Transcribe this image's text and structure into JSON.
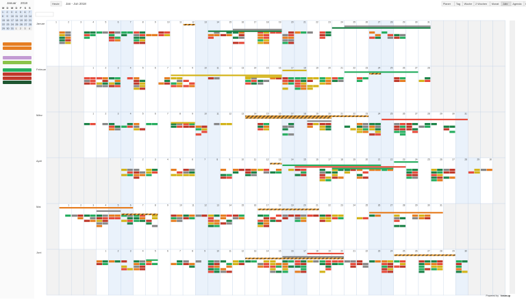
{
  "sidebar": {
    "month": "Januar",
    "year": "2018",
    "weekdays": [
      "M",
      "D",
      "M",
      "D",
      "F",
      "S",
      "S"
    ],
    "days": [
      1,
      2,
      3,
      4,
      5,
      6,
      7,
      8,
      9,
      10,
      11,
      12,
      13,
      14,
      15,
      16,
      17,
      18,
      19,
      20,
      21,
      22,
      23,
      24,
      25,
      26,
      27,
      28,
      29,
      30,
      31,
      1,
      2,
      3,
      4
    ]
  },
  "toolbar": {
    "today": "Heute",
    "range": "Jan - Jun 2018",
    "views": [
      "Planer",
      "Tag",
      "Woche",
      "2 Wochen",
      "Monat",
      "Jahr",
      "Agenda",
      "Liste"
    ]
  },
  "calendar": {
    "months": [
      {
        "name": "Januar",
        "days": [
          1,
          2,
          3,
          4,
          5,
          6,
          7,
          8,
          9,
          10,
          11,
          12,
          13,
          14,
          15,
          16,
          17,
          18,
          19,
          20,
          21,
          22,
          23,
          24,
          25,
          26,
          27,
          28,
          29,
          30,
          31
        ]
      },
      {
        "name": "Februar",
        "days": [
          1,
          2,
          3,
          4,
          5,
          6,
          7,
          8,
          9,
          10,
          11,
          12,
          13,
          14,
          15,
          16,
          17,
          18,
          19,
          20,
          21,
          22,
          23,
          24,
          25,
          26,
          27,
          28
        ]
      },
      {
        "name": "März",
        "days": [
          1,
          2,
          3,
          4,
          5,
          6,
          7,
          8,
          9,
          10,
          11,
          12,
          13,
          14,
          15,
          16,
          17,
          18,
          19,
          20,
          21,
          22,
          23,
          24,
          25,
          26,
          27,
          28,
          29,
          30,
          31
        ]
      },
      {
        "name": "April",
        "days": [
          1,
          2,
          3,
          4,
          5,
          6,
          7,
          8,
          9,
          10,
          11,
          12,
          13,
          14,
          15,
          16,
          17,
          18,
          19,
          20,
          21,
          22,
          23,
          24,
          25,
          26,
          27,
          28,
          29,
          30
        ]
      },
      {
        "name": "Mai",
        "days": [
          1,
          2,
          3,
          4,
          5,
          6,
          7,
          8,
          9,
          10,
          11,
          12,
          13,
          14,
          15,
          16,
          17,
          18,
          19,
          20,
          21,
          22,
          23,
          24,
          25,
          26,
          27,
          28,
          29,
          30,
          31
        ]
      },
      {
        "name": "Juni",
        "days": [
          1,
          2,
          3,
          4,
          5,
          6,
          7,
          8,
          9,
          10,
          11,
          12,
          13,
          14,
          15,
          16,
          17,
          18,
          19,
          20,
          21,
          22,
          23,
          24,
          25,
          26,
          27,
          28,
          29,
          30
        ]
      }
    ]
  },
  "footer": {
    "powered": "Powered by",
    "brand": "teamup"
  }
}
